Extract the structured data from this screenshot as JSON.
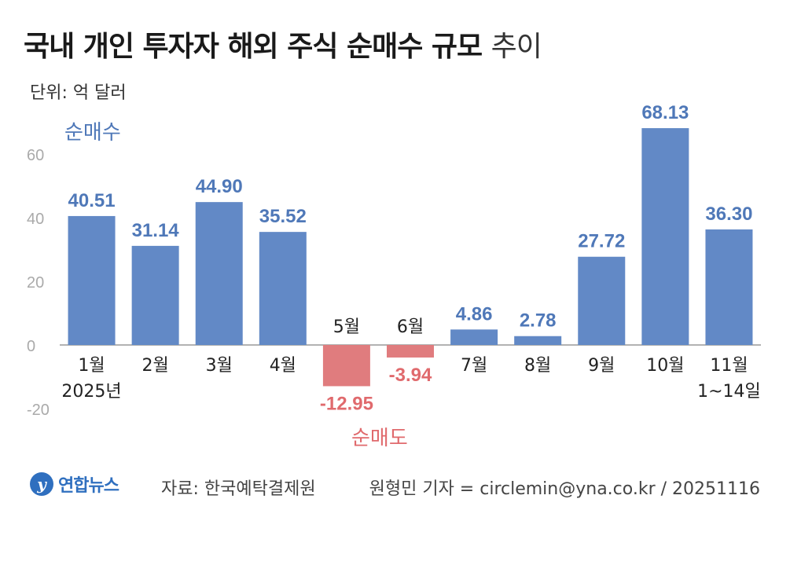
{
  "header": {
    "title_bold": "국내 개인 투자자 해외 주식 순매수 규모",
    "title_light": "추이",
    "unit": "단위: 억 달러"
  },
  "colors": {
    "positive": "#6289c6",
    "negative": "#e07c7e",
    "positive_label": "#4f78b8",
    "negative_label": "#e06a6d",
    "axis": "#999999"
  },
  "chart_data": {
    "type": "bar",
    "categories": [
      "1월",
      "2월",
      "3월",
      "4월",
      "5월",
      "6월",
      "7월",
      "8월",
      "9월",
      "10월",
      "11월"
    ],
    "sub_labels": [
      "2025년",
      "",
      "",
      "",
      "",
      "",
      "",
      "",
      "",
      "",
      "1~14일"
    ],
    "values": [
      40.51,
      31.14,
      44.9,
      35.52,
      -12.95,
      -3.94,
      4.86,
      2.78,
      27.72,
      68.13,
      36.3
    ],
    "value_labels": [
      "40.51",
      "31.14",
      "44.90",
      "35.52",
      "-12.95",
      "-3.94",
      "4.86",
      "2.78",
      "27.72",
      "68.13",
      "36.30"
    ],
    "yticks": [
      60,
      40,
      20,
      0,
      -20
    ],
    "ylim": [
      -20,
      70
    ],
    "annotations": {
      "positive": "순매수",
      "negative": "순매도"
    }
  },
  "footer": {
    "logo_text": "연합뉴스",
    "source": "자료: 한국예탁결제원",
    "credit": "원형민 기자 = circlemin@yna.co.kr / 20251116"
  }
}
